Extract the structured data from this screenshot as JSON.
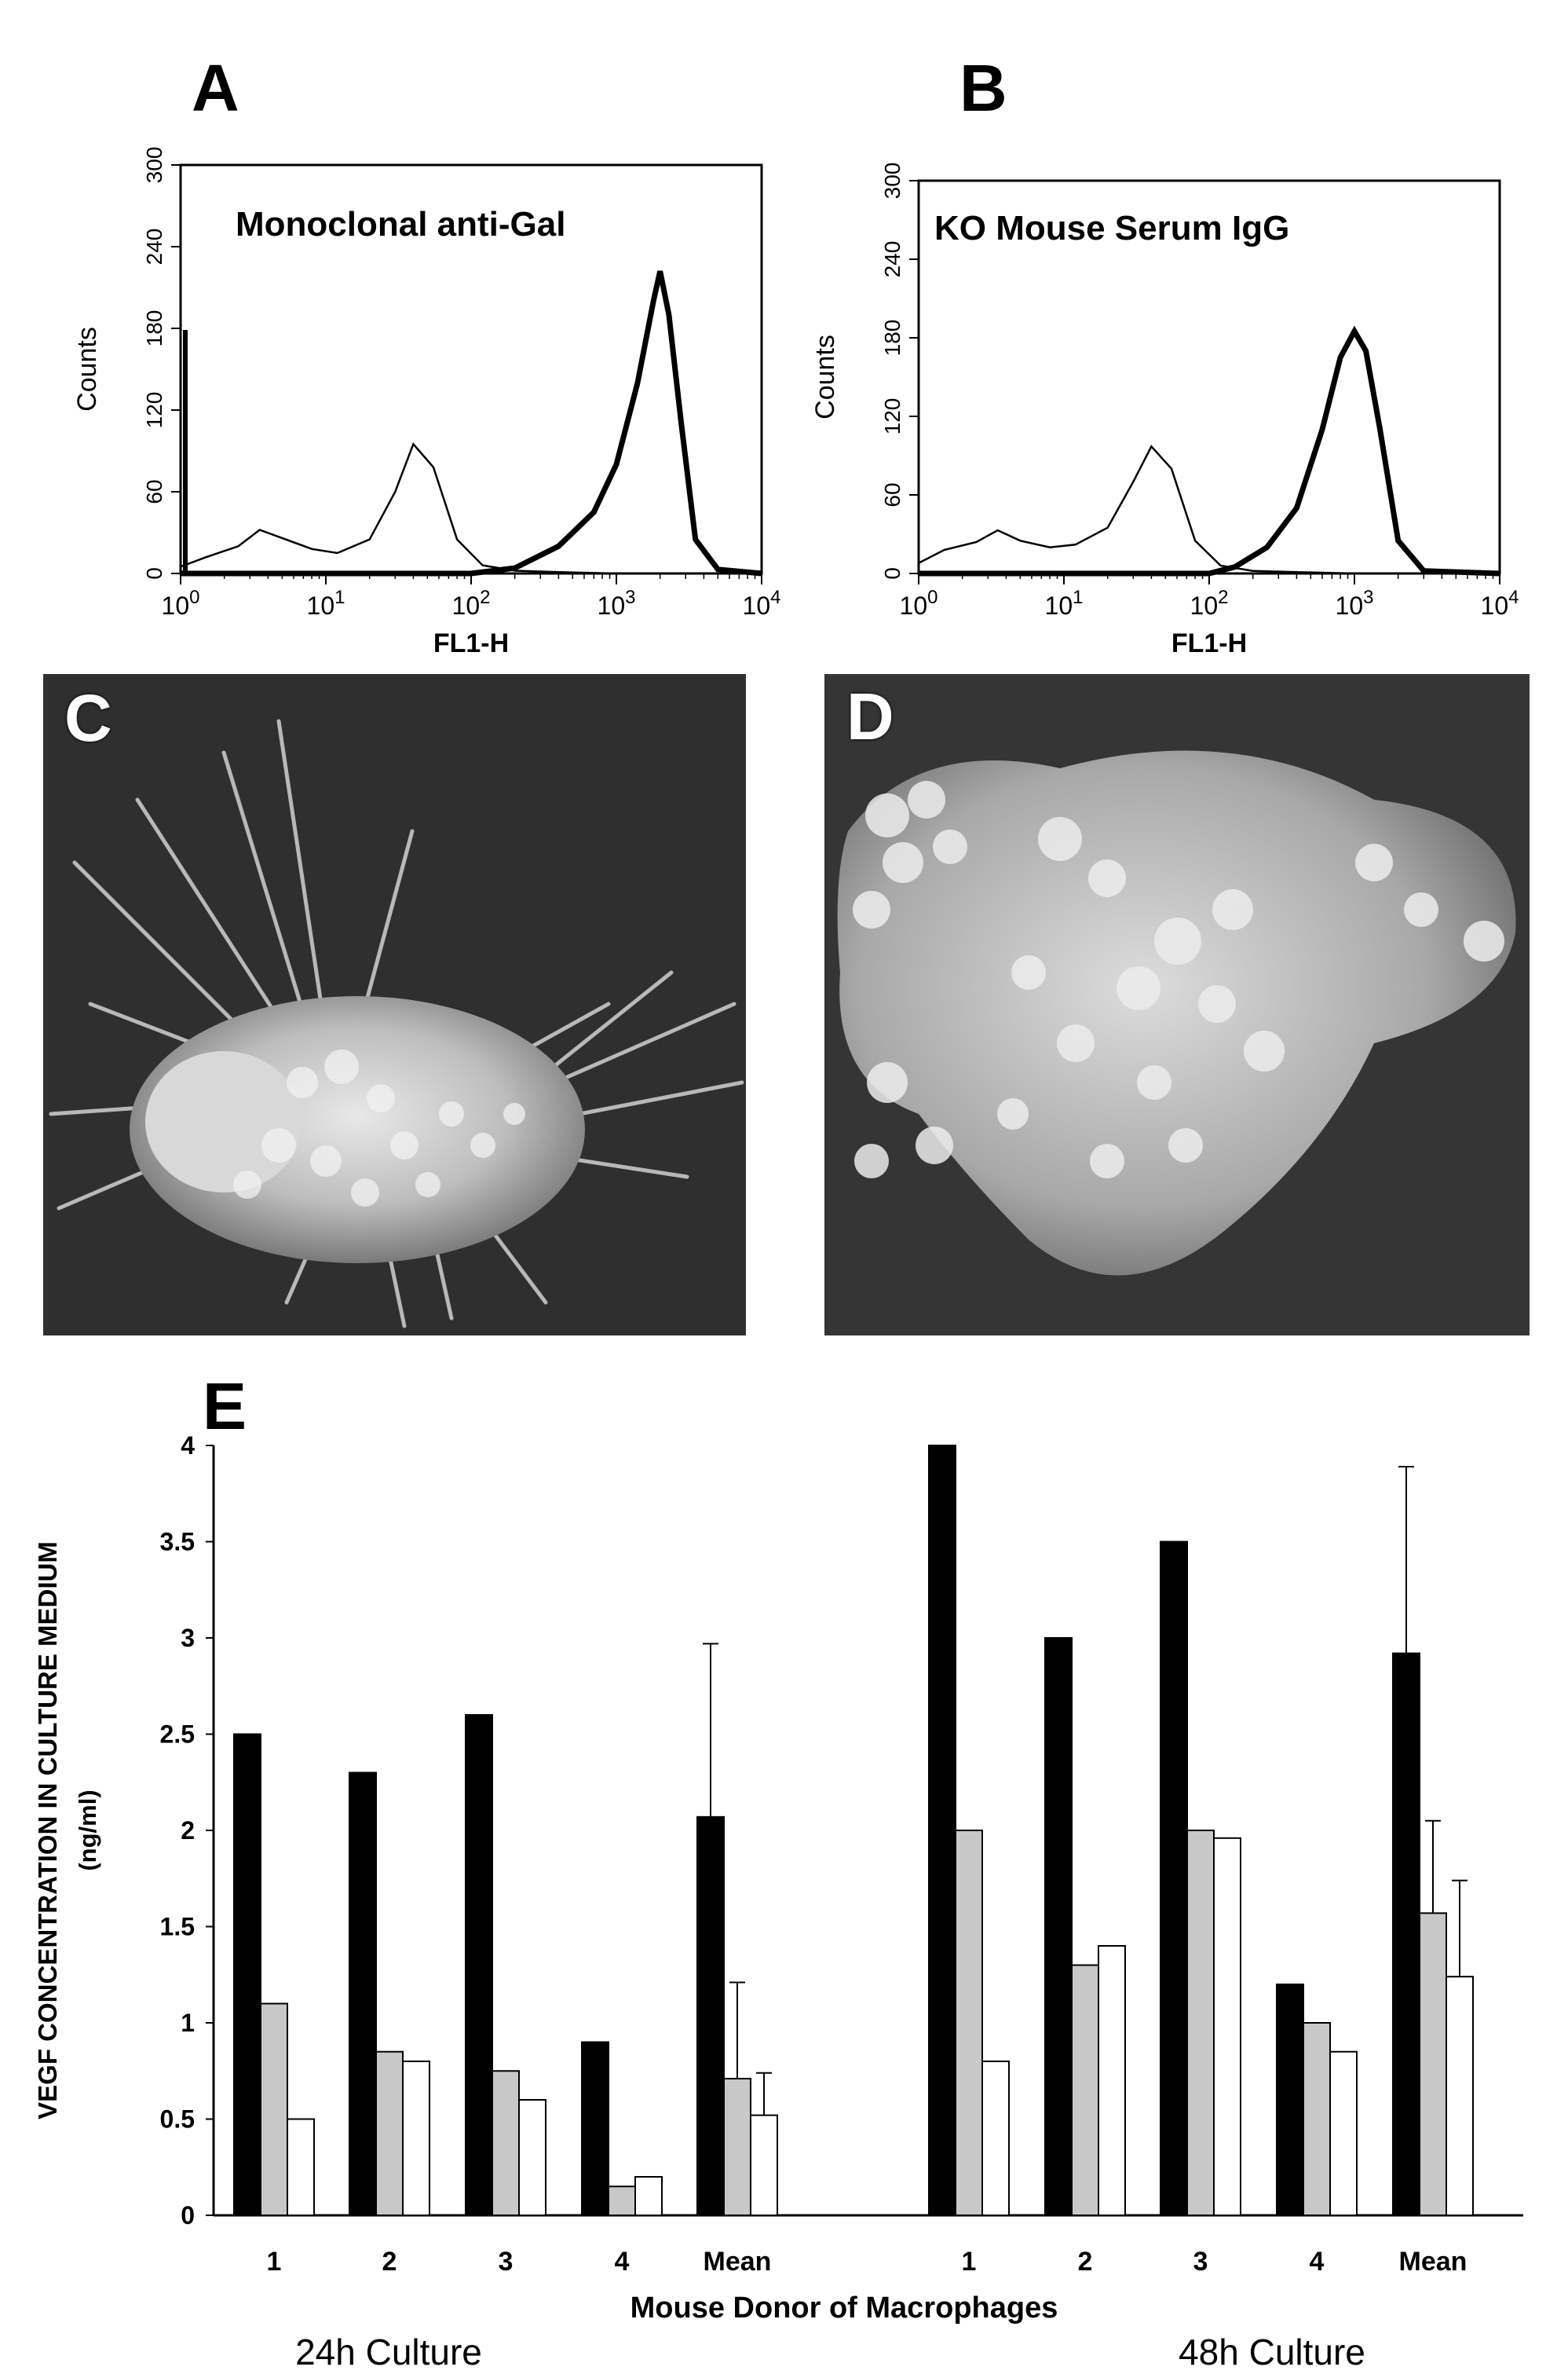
{
  "panels": {
    "A": {
      "letter": "A"
    },
    "B": {
      "letter": "B"
    },
    "C": {
      "letter": "C"
    },
    "D": {
      "letter": "D"
    },
    "E": {
      "letter": "E"
    }
  },
  "chart_data": [
    {
      "type": "line",
      "panel": "A",
      "title": "Monoclonal anti-Gal",
      "xlabel": "FL1-H",
      "ylabel": "Counts",
      "xscale": "log",
      "xlim": [
        1,
        10000
      ],
      "ylim": [
        0,
        300
      ],
      "yticks": [
        "0",
        "60",
        "120",
        "180",
        "240",
        "300"
      ],
      "xticks": [
        "10^0",
        "10^1",
        "10^2",
        "10^3",
        "10^4"
      ],
      "series": [
        {
          "style": "thin",
          "x": [
            1,
            1.5,
            2.5,
            3.5,
            5,
            8,
            12,
            20,
            30,
            40,
            55,
            80,
            120,
            200,
            400,
            1000,
            10000
          ],
          "y": [
            5,
            12,
            20,
            32,
            26,
            18,
            15,
            25,
            60,
            95,
            78,
            25,
            6,
            2,
            1,
            0,
            0
          ]
        },
        {
          "style": "thick",
          "x": [
            1,
            10,
            100,
            200,
            400,
            700,
            1000,
            1400,
            1800,
            2000,
            2300,
            2800,
            3500,
            5000,
            10000
          ],
          "y": [
            0,
            0,
            0,
            4,
            20,
            45,
            80,
            140,
            200,
            222,
            190,
            110,
            25,
            3,
            0
          ]
        }
      ]
    },
    {
      "type": "line",
      "panel": "B",
      "title": "KO Mouse  Serum IgG",
      "xlabel": "FL1-H",
      "ylabel": "Counts",
      "xscale": "log",
      "xlim": [
        1,
        10000
      ],
      "ylim": [
        0,
        300
      ],
      "yticks": [
        "0",
        "60",
        "120",
        "180",
        "240",
        "300"
      ],
      "xticks": [
        "10^0",
        "10^1",
        "10^2",
        "10^3",
        "10^4"
      ],
      "series": [
        {
          "style": "thin",
          "x": [
            1,
            1.5,
            2.5,
            3.5,
            5,
            8,
            12,
            20,
            30,
            40,
            55,
            80,
            120,
            200,
            400,
            1000,
            10000
          ],
          "y": [
            8,
            18,
            24,
            33,
            25,
            20,
            22,
            35,
            70,
            97,
            80,
            25,
            6,
            2,
            1,
            0,
            0
          ]
        },
        {
          "style": "thick",
          "x": [
            1,
            10,
            100,
            150,
            250,
            400,
            600,
            800,
            1000,
            1200,
            1500,
            2000,
            3000,
            10000
          ],
          "y": [
            0,
            0,
            0,
            5,
            20,
            50,
            110,
            165,
            185,
            170,
            110,
            25,
            2,
            0
          ]
        }
      ]
    },
    {
      "type": "bar",
      "panel": "E",
      "xlabel": "Mouse Donor of Macrophages",
      "ylabel": "VEGF CONCENTRATION IN CULTURE MEDIUM",
      "ylabel_unit": "(ng/ml)",
      "ylim": [
        0,
        4
      ],
      "yticks": [
        "0",
        "0.5",
        "1",
        "1.5",
        "2",
        "2.5",
        "3",
        "3.5",
        "4"
      ],
      "groups": [
        {
          "label": "24h Culture",
          "categories": [
            "1",
            "2",
            "3",
            "4",
            "Mean"
          ]
        },
        {
          "label": "48h Culture",
          "categories": [
            "1",
            "2",
            "3",
            "4",
            "Mean"
          ]
        }
      ],
      "series": [
        {
          "fill": "#000000",
          "values_24h": [
            2.5,
            2.3,
            2.6,
            0.9,
            2.07
          ],
          "values_48h": [
            4.0,
            3.0,
            3.5,
            1.2,
            2.92
          ],
          "err_24h": 0.9,
          "err_48h": 0.97
        },
        {
          "fill": "#c8c8c8",
          "values_24h": [
            1.1,
            0.85,
            0.75,
            0.15,
            0.71
          ],
          "values_48h": [
            2.0,
            1.3,
            2.0,
            1.0,
            1.57
          ],
          "err_24h": 0.5,
          "err_48h": 0.48
        },
        {
          "fill": "#ffffff",
          "values_24h": [
            0.5,
            0.8,
            0.6,
            0.2,
            0.52
          ],
          "values_48h": [
            0.8,
            1.4,
            1.96,
            0.85,
            1.24
          ],
          "err_24h": 0.22,
          "err_48h": 0.5
        }
      ]
    }
  ]
}
